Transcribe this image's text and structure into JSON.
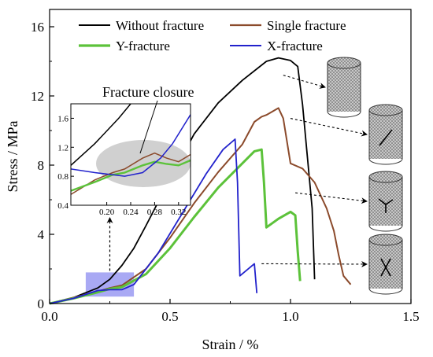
{
  "chart_data": {
    "type": "line",
    "xlabel": "Strain / %",
    "ylabel": "Stress / MPa",
    "xlim": [
      0,
      1.5
    ],
    "ylim": [
      0,
      17
    ],
    "xticks": [
      "0.0",
      "0.5",
      "1.0",
      "1.5"
    ],
    "yticks": [
      "0",
      "4",
      "8",
      "12",
      "16"
    ],
    "grid": false,
    "legend_position": "top",
    "colors": {
      "without": "#000000",
      "single": "#8b4a2b",
      "y": "#5cc23a",
      "x": "#2222cc",
      "highlight": "#8c8cf0",
      "ellipse": "#d0d0d0"
    },
    "series": [
      {
        "name": "Without fracture",
        "points": [
          [
            0,
            0
          ],
          [
            0.1,
            0.35
          ],
          [
            0.2,
            0.9
          ],
          [
            0.25,
            1.4
          ],
          [
            0.3,
            2.2
          ],
          [
            0.35,
            3.2
          ],
          [
            0.4,
            4.5
          ],
          [
            0.5,
            7.2
          ],
          [
            0.6,
            9.8
          ],
          [
            0.7,
            11.6
          ],
          [
            0.8,
            12.9
          ],
          [
            0.9,
            14.0
          ],
          [
            0.95,
            14.2
          ],
          [
            1.0,
            14.05
          ],
          [
            1.03,
            13.7
          ],
          [
            1.05,
            11.5
          ],
          [
            1.07,
            8.5
          ],
          [
            1.09,
            5.5
          ],
          [
            1.1,
            1.4
          ]
        ]
      },
      {
        "name": "Single fracture",
        "points": [
          [
            0,
            0
          ],
          [
            0.1,
            0.35
          ],
          [
            0.2,
            0.7
          ],
          [
            0.25,
            0.9
          ],
          [
            0.3,
            1.05
          ],
          [
            0.4,
            2.0
          ],
          [
            0.5,
            3.8
          ],
          [
            0.6,
            5.8
          ],
          [
            0.7,
            7.6
          ],
          [
            0.8,
            9.2
          ],
          [
            0.85,
            10.5
          ],
          [
            0.88,
            10.8
          ],
          [
            0.9,
            10.9
          ],
          [
            0.95,
            11.3
          ],
          [
            0.97,
            10.7
          ],
          [
            1.0,
            8.1
          ],
          [
            1.05,
            7.8
          ],
          [
            1.1,
            7.0
          ],
          [
            1.15,
            5.5
          ],
          [
            1.18,
            4.2
          ],
          [
            1.2,
            2.8
          ],
          [
            1.22,
            1.6
          ],
          [
            1.25,
            1.1
          ]
        ]
      },
      {
        "name": "Y-fracture",
        "points": [
          [
            0,
            0
          ],
          [
            0.1,
            0.3
          ],
          [
            0.2,
            0.65
          ],
          [
            0.25,
            0.85
          ],
          [
            0.3,
            0.95
          ],
          [
            0.4,
            1.7
          ],
          [
            0.5,
            3.2
          ],
          [
            0.6,
            5.0
          ],
          [
            0.7,
            6.7
          ],
          [
            0.8,
            8.1
          ],
          [
            0.85,
            8.8
          ],
          [
            0.88,
            8.9
          ],
          [
            0.89,
            7.0
          ],
          [
            0.9,
            4.4
          ],
          [
            0.95,
            4.9
          ],
          [
            1.0,
            5.3
          ],
          [
            1.02,
            5.1
          ],
          [
            1.03,
            3.0
          ],
          [
            1.04,
            1.3
          ]
        ]
      },
      {
        "name": "X-fracture",
        "points": [
          [
            0,
            0
          ],
          [
            0.1,
            0.3
          ],
          [
            0.2,
            0.75
          ],
          [
            0.25,
            0.8
          ],
          [
            0.3,
            0.8
          ],
          [
            0.35,
            1.1
          ],
          [
            0.45,
            2.9
          ],
          [
            0.55,
            5.2
          ],
          [
            0.65,
            7.5
          ],
          [
            0.72,
            8.9
          ],
          [
            0.77,
            9.5
          ],
          [
            0.78,
            7.0
          ],
          [
            0.79,
            1.6
          ],
          [
            0.85,
            2.3
          ],
          [
            0.86,
            0.6
          ]
        ]
      }
    ],
    "inset": {
      "xlim": [
        0.14,
        0.34
      ],
      "ylim": [
        0.4,
        1.8
      ],
      "xticks": [
        "0.20",
        "0.24",
        "0.28",
        "0.32"
      ],
      "yticks": [
        "0.4",
        "0.8",
        "1.2",
        "1.6"
      ],
      "highlight_region": {
        "x": [
          0.15,
          0.35
        ],
        "y": [
          0.4,
          1.8
        ]
      }
    },
    "annotations": {
      "closure_label": "Fracture closure"
    },
    "specimen_icons": [
      "intact-cylinder-icon",
      "single-fracture-cylinder-icon",
      "y-fracture-cylinder-icon",
      "x-fracture-cylinder-icon"
    ]
  }
}
